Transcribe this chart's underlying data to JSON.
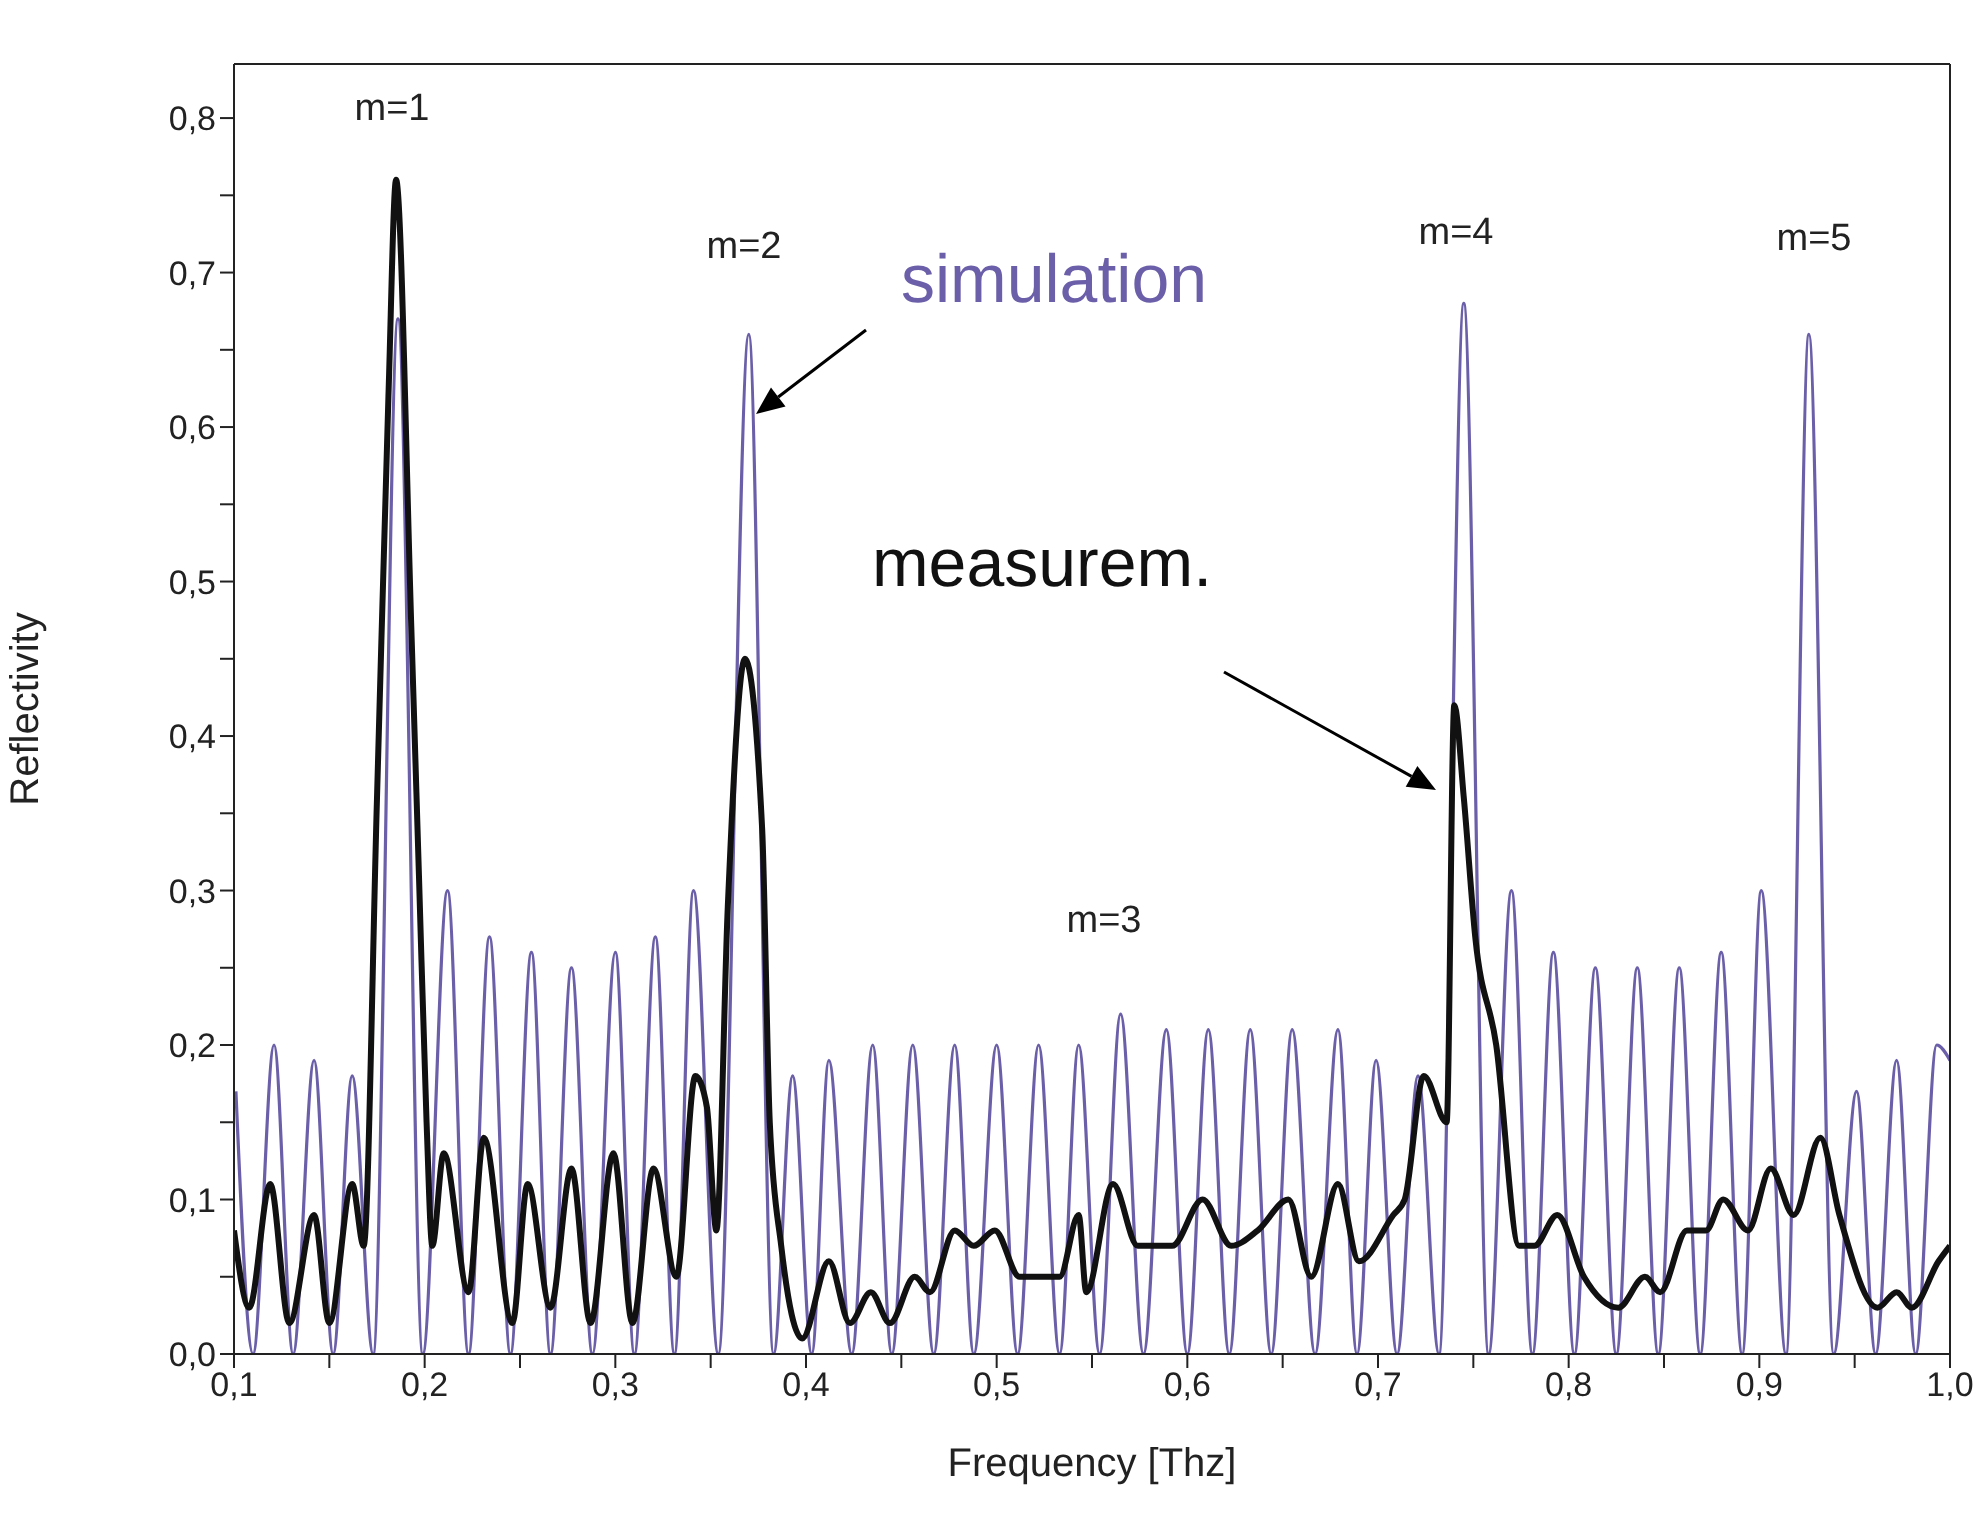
{
  "chart_data": {
    "type": "line",
    "xlabel": "Frequency [Thz]",
    "ylabel": "Reflectivity",
    "xlim": [
      0.1,
      1.0
    ],
    "ylim": [
      0,
      0.835
    ],
    "xticks": [
      {
        "value": 0.1,
        "label": "0,1"
      },
      {
        "value": 0.15,
        "label": null
      },
      {
        "value": 0.2,
        "label": "0,2"
      },
      {
        "value": 0.25,
        "label": null
      },
      {
        "value": 0.3,
        "label": "0,3"
      },
      {
        "value": 0.35,
        "label": null
      },
      {
        "value": 0.4,
        "label": "0,4"
      },
      {
        "value": 0.45,
        "label": null
      },
      {
        "value": 0.5,
        "label": "0,5"
      },
      {
        "value": 0.55,
        "label": null
      },
      {
        "value": 0.6,
        "label": "0,6"
      },
      {
        "value": 0.65,
        "label": null
      },
      {
        "value": 0.7,
        "label": "0,7"
      },
      {
        "value": 0.75,
        "label": null
      },
      {
        "value": 0.8,
        "label": "0,8"
      },
      {
        "value": 0.85,
        "label": null
      },
      {
        "value": 0.9,
        "label": "0,9"
      },
      {
        "value": 0.95,
        "label": null
      },
      {
        "value": 1.0,
        "label": "1,0"
      }
    ],
    "yticks": [
      {
        "value": 0,
        "label": "0,0"
      },
      {
        "value": 0.05,
        "label": null
      },
      {
        "value": 0.1,
        "label": "0,1"
      },
      {
        "value": 0.15,
        "label": null
      },
      {
        "value": 0.2,
        "label": "0,2"
      },
      {
        "value": 0.25,
        "label": null
      },
      {
        "value": 0.3,
        "label": "0,3"
      },
      {
        "value": 0.35,
        "label": null
      },
      {
        "value": 0.4,
        "label": "0,4"
      },
      {
        "value": 0.45,
        "label": null
      },
      {
        "value": 0.5,
        "label": "0,5"
      },
      {
        "value": 0.55,
        "label": null
      },
      {
        "value": 0.6,
        "label": "0,6"
      },
      {
        "value": 0.65,
        "label": null
      },
      {
        "value": 0.7,
        "label": "0,7"
      },
      {
        "value": 0.75,
        "label": null
      },
      {
        "value": 0.8,
        "label": "0,8"
      }
    ],
    "marker": "none",
    "line_style": "solid",
    "series": [
      {
        "name": "simulation",
        "color": "#6a5fa8",
        "x": [
          0.101,
          0.11,
          0.121,
          0.131,
          0.142,
          0.152,
          0.162,
          0.173,
          0.186,
          0.199,
          0.212,
          0.223,
          0.234,
          0.245,
          0.256,
          0.266,
          0.277,
          0.288,
          0.3,
          0.31,
          0.321,
          0.331,
          0.341,
          0.354,
          0.37,
          0.383,
          0.393,
          0.403,
          0.412,
          0.424,
          0.435,
          0.445,
          0.456,
          0.467,
          0.478,
          0.488,
          0.5,
          0.511,
          0.522,
          0.533,
          0.543,
          0.554,
          0.565,
          0.577,
          0.589,
          0.6,
          0.611,
          0.622,
          0.633,
          0.644,
          0.655,
          0.667,
          0.679,
          0.689,
          0.699,
          0.71,
          0.721,
          0.732,
          0.745,
          0.758,
          0.77,
          0.781,
          0.792,
          0.803,
          0.814,
          0.825,
          0.836,
          0.847,
          0.858,
          0.869,
          0.88,
          0.891,
          0.901,
          0.914,
          0.926,
          0.939,
          0.951,
          0.961,
          0.972,
          0.982,
          0.993,
          1.0
        ],
        "values": [
          0.17,
          0,
          0.2,
          0,
          0.19,
          0,
          0.18,
          0,
          0.67,
          0,
          0.3,
          0,
          0.27,
          0,
          0.26,
          0,
          0.25,
          0,
          0.26,
          0,
          0.27,
          0,
          0.3,
          0,
          0.66,
          0,
          0.18,
          0,
          0.19,
          0,
          0.2,
          0,
          0.2,
          0,
          0.2,
          0,
          0.2,
          0,
          0.2,
          0,
          0.2,
          0,
          0.22,
          0,
          0.21,
          0,
          0.21,
          0,
          0.21,
          0,
          0.21,
          0,
          0.21,
          0,
          0.19,
          0,
          0.18,
          0,
          0.68,
          0,
          0.3,
          0,
          0.26,
          0,
          0.25,
          0,
          0.25,
          0,
          0.25,
          0,
          0.26,
          0,
          0.3,
          0,
          0.66,
          0,
          0.17,
          0,
          0.19,
          0,
          0.2,
          0.19
        ]
      },
      {
        "name": "measurem.",
        "color": "#111111",
        "x": [
          0.1,
          0.108,
          0.119,
          0.129,
          0.142,
          0.15,
          0.162,
          0.168,
          0.175,
          0.181,
          0.185,
          0.193,
          0.197,
          0.201,
          0.204,
          0.21,
          0.223,
          0.231,
          0.246,
          0.254,
          0.266,
          0.277,
          0.287,
          0.299,
          0.309,
          0.32,
          0.332,
          0.342,
          0.348,
          0.353,
          0.359,
          0.368,
          0.377,
          0.381,
          0.387,
          0.398,
          0.412,
          0.423,
          0.434,
          0.444,
          0.457,
          0.465,
          0.478,
          0.488,
          0.499,
          0.512,
          0.533,
          0.543,
          0.547,
          0.561,
          0.574,
          0.592,
          0.608,
          0.623,
          0.637,
          0.653,
          0.665,
          0.679,
          0.69,
          0.708,
          0.714,
          0.724,
          0.736,
          0.74,
          0.745,
          0.751,
          0.762,
          0.774,
          0.782,
          0.794,
          0.808,
          0.826,
          0.84,
          0.848,
          0.862,
          0.872,
          0.881,
          0.894,
          0.906,
          0.918,
          0.932,
          0.942,
          0.962,
          0.972,
          0.98,
          0.994,
          1.0
        ],
        "values": [
          0.08,
          0.03,
          0.11,
          0.02,
          0.09,
          0.02,
          0.11,
          0.07,
          0.36,
          0.62,
          0.76,
          0.47,
          0.31,
          0.15,
          0.07,
          0.13,
          0.04,
          0.14,
          0.02,
          0.11,
          0.03,
          0.12,
          0.02,
          0.13,
          0.02,
          0.12,
          0.05,
          0.18,
          0.16,
          0.08,
          0.29,
          0.45,
          0.34,
          0.15,
          0.07,
          0.01,
          0.06,
          0.02,
          0.04,
          0.02,
          0.05,
          0.04,
          0.08,
          0.07,
          0.08,
          0.05,
          0.05,
          0.09,
          0.04,
          0.11,
          0.07,
          0.07,
          0.1,
          0.07,
          0.08,
          0.1,
          0.05,
          0.11,
          0.06,
          0.09,
          0.1,
          0.18,
          0.15,
          0.42,
          0.36,
          0.27,
          0.2,
          0.07,
          0.07,
          0.09,
          0.05,
          0.03,
          0.05,
          0.04,
          0.08,
          0.08,
          0.1,
          0.08,
          0.12,
          0.09,
          0.14,
          0.09,
          0.03,
          0.04,
          0.03,
          0.06,
          0.07
        ]
      }
    ],
    "annotations": [
      "m=1",
      "m=2",
      "m=3",
      "m=4",
      "m=5"
    ]
  }
}
